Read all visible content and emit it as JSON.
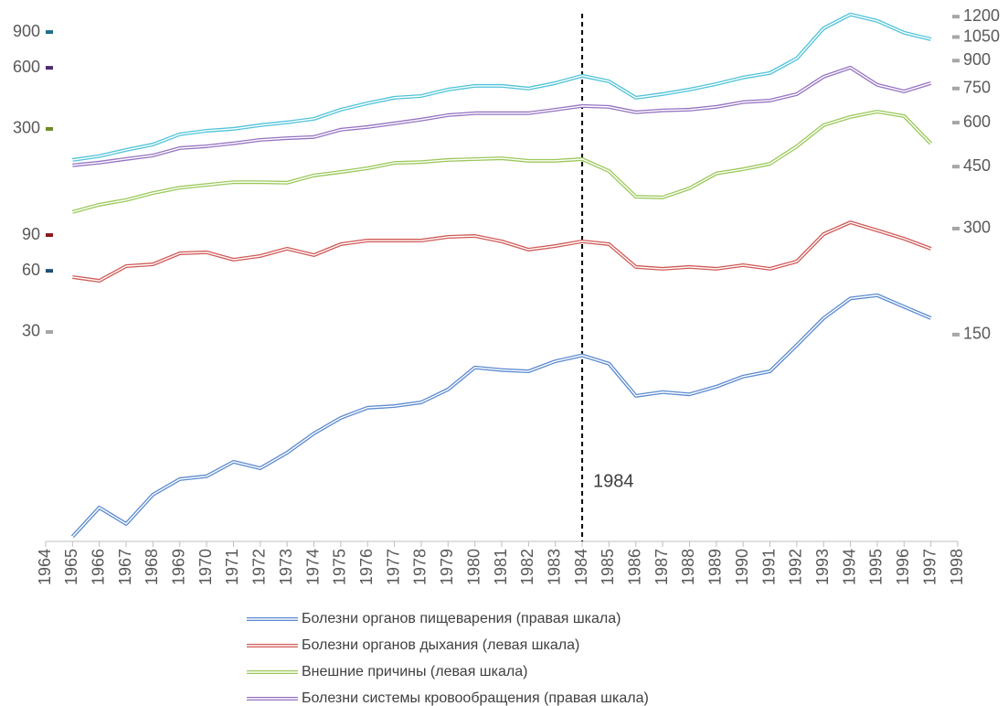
{
  "chart_data": {
    "type": "line",
    "x": [
      1965,
      1966,
      1967,
      1968,
      1969,
      1970,
      1971,
      1972,
      1973,
      1974,
      1975,
      1976,
      1977,
      1978,
      1979,
      1980,
      1981,
      1982,
      1983,
      1984,
      1985,
      1986,
      1987,
      1988,
      1989,
      1990,
      1991,
      1992,
      1993,
      1994,
      1995,
      1996,
      1997
    ],
    "xlim": [
      1964,
      1998
    ],
    "xticks": [
      1964,
      1965,
      1966,
      1967,
      1968,
      1969,
      1970,
      1971,
      1972,
      1973,
      1974,
      1975,
      1976,
      1977,
      1978,
      1979,
      1980,
      1981,
      1982,
      1983,
      1984,
      1985,
      1986,
      1987,
      1988,
      1989,
      1990,
      1991,
      1992,
      1993,
      1994,
      1995,
      1996,
      1997,
      1998
    ],
    "ylim": [
      2.79,
      1108
    ],
    "yticks": [
      30,
      60,
      90,
      300,
      600,
      900
    ],
    "ytick_colors": [
      "#a6a6a6",
      "#1f4e79",
      "#8b1a1a",
      "#6b8e23",
      "#4b2a6b",
      "#1f6e8c"
    ],
    "y2lim": [
      38.8,
      1223
    ],
    "y2ticks": [
      150,
      300,
      450,
      600,
      750,
      900,
      1050,
      1200
    ],
    "y2tick_color": "#a6a6a6",
    "log_scale": true,
    "series": [
      {
        "name": "Болезни органов пищеварения (правая шкала)",
        "color": "#5b8ad0",
        "axis": "y2",
        "values": [
          40,
          48.4,
          43.5,
          52.7,
          58.3,
          59.4,
          65.3,
          62.6,
          69.3,
          78.6,
          87,
          93,
          94,
          96.3,
          104.8,
          121,
          119,
          118,
          126,
          131,
          124,
          100.5,
          103,
          101.5,
          106.7,
          114,
          118,
          140,
          167,
          190,
          194,
          180,
          167
        ]
      },
      {
        "name": "Болезни органов дыхания (левая шкала)",
        "color": "#d05a57",
        "axis": "y",
        "values": [
          55.9,
          53.6,
          63.3,
          64.6,
          73.2,
          74,
          68.1,
          71,
          77.1,
          71.7,
          81.2,
          84.6,
          84.6,
          84.6,
          88.2,
          89.1,
          83.8,
          76.3,
          79.5,
          83.8,
          81.2,
          62.7,
          61.4,
          62.7,
          61.4,
          64,
          61.4,
          66.7,
          91,
          104,
          94.9,
          86.4,
          77.1
        ]
      },
      {
        "name": "Внешние причины (левая шкала)",
        "color": "#9bc85a",
        "axis": "y",
        "values": [
          117,
          127,
          134,
          145,
          154,
          159,
          164,
          164,
          163,
          177,
          184,
          192,
          204,
          206,
          211,
          213,
          215,
          209,
          209,
          213,
          186,
          139,
          138,
          153,
          181,
          190,
          202,
          246,
          313,
          344,
          365,
          347,
          254
        ]
      },
      {
        "name": "Болезни системы кровообращения (правая шкала)",
        "color": "#9673c2",
        "axis": "y2",
        "values": [
          454,
          462,
          473,
          484,
          508,
          514,
          524,
          536,
          542,
          546,
          573,
          583,
          597,
          612,
          630,
          638,
          638,
          638,
          653,
          669,
          665,
          642,
          650,
          653,
          665,
          686,
          693,
          723,
          810,
          860,
          768,
          736,
          777
        ]
      },
      {
        "color": "#4fc3d9",
        "axis": "y2",
        "values": [
          470,
          482,
          502,
          520,
          556,
          569,
          576,
          590,
          601,
          615,
          653,
          681,
          706,
          714,
          745,
          763,
          763,
          750,
          777,
          815,
          786,
          706,
          723,
          745,
          772,
          806,
          830,
          913,
          1112,
          1217,
          1167,
          1080,
          1035
        ]
      }
    ],
    "annotations": [
      {
        "x": 1984,
        "label": "1984"
      }
    ]
  }
}
